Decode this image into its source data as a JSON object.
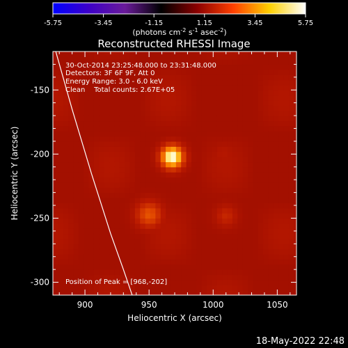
{
  "chart_data": {
    "type": "heatmap",
    "title": "Reconstructed RHESSI Image",
    "xlabel": "Heliocentric X (arcsec)",
    "ylabel": "Heliocentric Y (arcsec)",
    "xlim": [
      875,
      1065
    ],
    "ylim": [
      -310,
      -120
    ],
    "xticks": [
      900,
      950,
      1000,
      1050
    ],
    "yticks": [
      -150,
      -200,
      -250,
      -300
    ],
    "colorbar": {
      "min": -5.75,
      "max": 5.75,
      "ticks": [
        "-5.75",
        "-3.45",
        "-1.15",
        "1.15",
        "3.45",
        "5.75"
      ],
      "label_parts": [
        "(photons cm",
        "-2",
        " s",
        "-1",
        " asec",
        "-2",
        ")"
      ],
      "colormap": [
        "#0000ff",
        "#3d00c8",
        "#6a1b9a",
        "#000000",
        "#8b0000",
        "#ff4000",
        "#ffd000",
        "#ffffff"
      ]
    },
    "info_lines": [
      "30-Oct-2014 23:25:48.000 to 23:31:48.000",
      "Detectors: 3F 6F 9F, Att 0",
      "Energy Range: 3.0 - 6.0 keV",
      "Clean    Total counts: 2.67E+05"
    ],
    "peak_label": "Position of Peak = [968,-202]",
    "sources": [
      {
        "x": 968,
        "y": -202,
        "value": 5.75
      },
      {
        "x": 950,
        "y": -247,
        "value": 3.2
      },
      {
        "x": 1010,
        "y": -248,
        "value": 2.3
      },
      {
        "x": 1008,
        "y": -200,
        "value": 1.9
      }
    ],
    "background_value": 1.5,
    "limb_curve": [
      [
        873,
        -105
      ],
      [
        890,
        -165
      ],
      [
        905,
        -215
      ],
      [
        920,
        -262
      ],
      [
        930,
        -290
      ],
      [
        942,
        -325
      ]
    ],
    "limb_color": "#ffffff"
  },
  "timestamp": "18-May-2022 22:48"
}
